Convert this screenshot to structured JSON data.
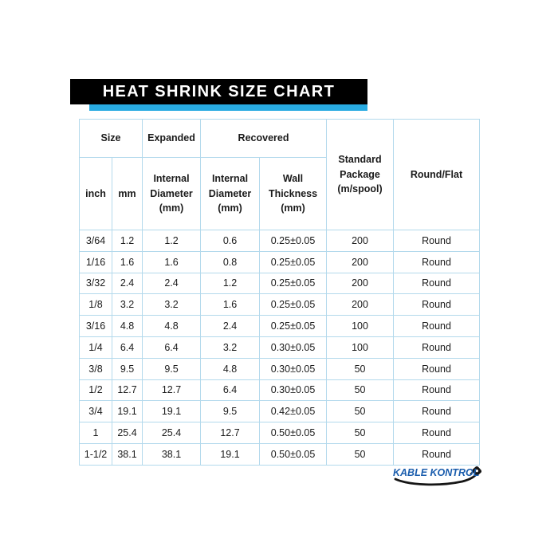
{
  "title": "HEAT SHRINK SIZE CHART",
  "colors": {
    "banner_black": "#000000",
    "accent_cyan": "#29ABE2",
    "table_border": "#B3D9EC",
    "text_dark": "#1b1b1b",
    "logo_blue": "#1A5DAD"
  },
  "logo": {
    "text": "KABLE KONTROL"
  },
  "chart_data": {
    "type": "table",
    "title": "HEAT SHRINK SIZE CHART",
    "group_headers": {
      "size": "Size",
      "expanded": "Expanded",
      "recovered": "Recovered",
      "standard_package": "Standard\nPackage\n(m/spool)",
      "round_flat": "Round/Flat"
    },
    "sub_headers": {
      "inch": "inch",
      "mm": "mm",
      "expanded_internal_diameter": "Internal\nDiameter\n(mm)",
      "recovered_internal_diameter": "Internal\nDiameter\n(mm)",
      "wall_thickness": "Wall\nThickness\n(mm)"
    },
    "columns": [
      "Size (inch)",
      "Size (mm)",
      "Expanded Internal Diameter (mm)",
      "Recovered Internal Diameter (mm)",
      "Recovered Wall Thickness (mm)",
      "Standard Package (m/spool)",
      "Round/Flat"
    ],
    "rows": [
      [
        "3/64",
        "1.2",
        "1.2",
        "0.6",
        "0.25±0.05",
        "200",
        "Round"
      ],
      [
        "1/16",
        "1.6",
        "1.6",
        "0.8",
        "0.25±0.05",
        "200",
        "Round"
      ],
      [
        "3/32",
        "2.4",
        "2.4",
        "1.2",
        "0.25±0.05",
        "200",
        "Round"
      ],
      [
        "1/8",
        "3.2",
        "3.2",
        "1.6",
        "0.25±0.05",
        "200",
        "Round"
      ],
      [
        "3/16",
        "4.8",
        "4.8",
        "2.4",
        "0.25±0.05",
        "100",
        "Round"
      ],
      [
        "1/4",
        "6.4",
        "6.4",
        "3.2",
        "0.30±0.05",
        "100",
        "Round"
      ],
      [
        "3/8",
        "9.5",
        "9.5",
        "4.8",
        "0.30±0.05",
        "50",
        "Round"
      ],
      [
        "1/2",
        "12.7",
        "12.7",
        "6.4",
        "0.30±0.05",
        "50",
        "Round"
      ],
      [
        "3/4",
        "19.1",
        "19.1",
        "9.5",
        "0.42±0.05",
        "50",
        "Round"
      ],
      [
        "1",
        "25.4",
        "25.4",
        "12.7",
        "0.50±0.05",
        "50",
        "Round"
      ],
      [
        "1-1/2",
        "38.1",
        "38.1",
        "19.1",
        "0.50±0.05",
        "50",
        "Round"
      ]
    ]
  }
}
